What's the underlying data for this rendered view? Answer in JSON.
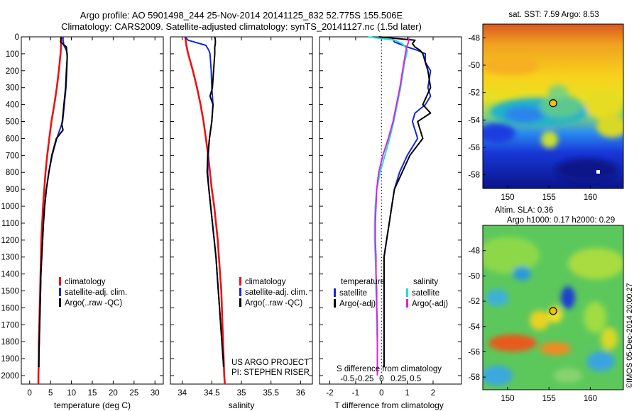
{
  "header": {
    "line1": "Argo profile: AO 5901498_244 25-Nov-2014 20141125_832 52.775S 155.506E",
    "line2": "Climatology: CARS2009. Satellite-adjusted climatology: synTS_20141127.nc (1.5d later)"
  },
  "colors": {
    "climatology": "#ee1111",
    "satellite": "#1428d8",
    "argo": "#000000",
    "salinity_satellite": "#22dddd",
    "salinity_argo": "#dd22dd"
  },
  "depth_ticks": [
    "0",
    "100",
    "200",
    "300",
    "400",
    "500",
    "600",
    "700",
    "800",
    "900",
    "1000",
    "1100",
    "1200",
    "1300",
    "1400",
    "1500",
    "1600",
    "1700",
    "1800",
    "1900",
    "2000"
  ],
  "chart_data": [
    {
      "type": "line",
      "xlabel": "temperature (deg C)",
      "ylabel": "",
      "xlim": [
        -2,
        32
      ],
      "ylim": [
        2050,
        0
      ],
      "xticks": [
        "0",
        "5",
        "10",
        "15",
        "20",
        "25",
        "30"
      ],
      "legend": {
        "position": "lower-middle",
        "entries": [
          "climatology",
          "satellite-adj. clim.",
          "Argo(..raw -QC)"
        ]
      },
      "series": [
        {
          "name": "climatology",
          "color": "#ee1111",
          "depth": [
            0,
            50,
            100,
            200,
            300,
            400,
            500,
            600,
            700,
            800,
            900,
            1000,
            1100,
            1200,
            1300,
            1400,
            1500,
            1600,
            1700,
            1800,
            1900,
            2000,
            2050
          ],
          "values": [
            7.6,
            7.5,
            7.4,
            7.0,
            6.5,
            5.9,
            5.2,
            4.7,
            4.2,
            3.8,
            3.5,
            3.2,
            3.0,
            2.8,
            2.7,
            2.6,
            2.5,
            2.4,
            2.3,
            2.2,
            2.2,
            2.1,
            2.1
          ]
        },
        {
          "name": "satellite-adj. clim.",
          "color": "#1428d8",
          "depth": [
            0,
            20,
            50,
            80,
            100,
            200,
            300,
            400,
            500,
            600,
            700,
            800,
            900,
            1000,
            1100,
            1200,
            1300,
            1400,
            1500,
            1600,
            1700,
            1800,
            1900,
            1950
          ],
          "values": [
            8.0,
            8.0,
            8.2,
            8.8,
            9.0,
            8.9,
            8.7,
            8.3,
            7.9,
            6.5,
            5.4,
            4.6,
            4.0,
            3.6,
            3.3,
            3.1,
            2.9,
            2.7,
            2.6,
            2.5,
            2.4,
            2.3,
            2.2,
            2.2
          ]
        },
        {
          "name": "Argo(..raw -QC)",
          "color": "#000000",
          "depth": [
            0,
            30,
            60,
            90,
            120,
            200,
            300,
            400,
            480,
            520,
            550,
            600,
            700,
            800,
            900,
            1000,
            1100,
            1200,
            1300,
            1400,
            1500,
            1600,
            1700,
            1800,
            1900,
            1950
          ],
          "values": [
            7.5,
            7.4,
            8.8,
            8.9,
            9.0,
            8.8,
            8.6,
            8.2,
            7.9,
            7.7,
            8.0,
            6.4,
            5.3,
            4.6,
            4.0,
            3.6,
            3.3,
            3.1,
            2.9,
            2.7,
            2.6,
            2.5,
            2.4,
            2.3,
            2.2,
            2.2
          ]
        }
      ]
    },
    {
      "type": "line",
      "xlabel": "salinity",
      "ylabel": "",
      "xlim": [
        33.8,
        36.2
      ],
      "ylim": [
        2050,
        0
      ],
      "xticks": [
        "34",
        "34.5",
        "35",
        "35.5",
        "36"
      ],
      "legend": {
        "position": "lower-middle",
        "entries": [
          "climatology",
          "satellite-adj. clim.",
          "Argo(..raw -QC)"
        ]
      },
      "annotation": [
        "US ARGO PROJECT",
        "PI: STEPHEN RISER"
      ],
      "series": [
        {
          "name": "climatology",
          "color": "#ee1111",
          "depth": [
            0,
            50,
            100,
            200,
            300,
            400,
            500,
            600,
            700,
            800,
            900,
            1000,
            1100,
            1200,
            1300,
            1400,
            1500,
            1600,
            1700,
            1800,
            1900,
            2000,
            2050
          ],
          "values": [
            34.05,
            34.07,
            34.1,
            34.18,
            34.25,
            34.31,
            34.36,
            34.4,
            34.44,
            34.47,
            34.5,
            34.54,
            34.57,
            34.6,
            34.62,
            34.64,
            34.66,
            34.67,
            34.68,
            34.69,
            34.7,
            34.71,
            34.72
          ]
        },
        {
          "name": "satellite-adj. clim.",
          "color": "#1428d8",
          "depth": [
            0,
            20,
            50,
            80,
            100,
            200,
            300,
            400,
            500,
            600,
            700,
            800,
            900,
            1000,
            1100,
            1200,
            1300,
            1400,
            1500,
            1600,
            1700,
            1800,
            1900,
            1950
          ],
          "values": [
            34.05,
            34.1,
            34.4,
            34.45,
            34.47,
            34.49,
            34.5,
            34.52,
            34.5,
            34.46,
            34.44,
            34.43,
            34.45,
            34.48,
            34.51,
            34.54,
            34.57,
            34.59,
            34.61,
            34.63,
            34.65,
            34.67,
            34.69,
            34.7
          ]
        },
        {
          "name": "Argo(..raw -QC)",
          "color": "#000000",
          "depth": [
            0,
            20,
            40,
            60,
            100,
            200,
            300,
            350,
            400,
            500,
            600,
            700,
            800,
            900,
            1000,
            1100,
            1200,
            1300,
            1400,
            1500,
            1600,
            1700,
            1800,
            1900,
            1950
          ],
          "values": [
            34.55,
            34.56,
            34.56,
            34.55,
            34.55,
            34.53,
            34.51,
            34.47,
            34.52,
            34.5,
            34.46,
            34.43,
            34.42,
            34.45,
            34.48,
            34.51,
            34.54,
            34.57,
            34.59,
            34.61,
            34.63,
            34.65,
            34.67,
            34.69,
            34.7
          ]
        }
      ]
    },
    {
      "type": "line",
      "xlabel": "T difference from climatology",
      "ylabel": "",
      "xlim": [
        -2.4,
        3.1
      ],
      "ylim": [
        2050,
        0
      ],
      "xticks": [
        "-2",
        "-1",
        "0",
        "1",
        "2"
      ],
      "secondary_axis": {
        "label": "S difference from climatology",
        "ticks": [
          "-0.5",
          "-0.25",
          "0",
          "0.25",
          "0.5"
        ]
      },
      "legend": {
        "position": "lower-middle",
        "groups": [
          {
            "title": "temperature",
            "entries": [
              "satellite",
              "Argo(-adj)"
            ]
          },
          {
            "title": "salinity",
            "entries": [
              "satellite",
              "Argo(-adj)"
            ]
          }
        ]
      },
      "series": [
        {
          "name": "temperature satellite",
          "color": "#1428d8",
          "depth": [
            0,
            30,
            60,
            80,
            100,
            150,
            200,
            300,
            350,
            400,
            450,
            500,
            600,
            700,
            800,
            900,
            1000,
            1100,
            1200,
            1300,
            1400,
            1500,
            1600,
            1700,
            1800,
            1900,
            1950
          ],
          "values": [
            0.4,
            0.5,
            1.0,
            1.4,
            1.7,
            1.7,
            1.9,
            1.8,
            1.9,
            1.7,
            1.3,
            1.2,
            1.4,
            1.0,
            0.7,
            0.5,
            0.4,
            0.3,
            0.2,
            0.1,
            0.1,
            0.1,
            0.1,
            0.1,
            0.1,
            0.1,
            0.1
          ]
        },
        {
          "name": "temperature Argo(-adj)",
          "color": "#000000",
          "depth": [
            0,
            20,
            40,
            60,
            80,
            100,
            150,
            200,
            300,
            400,
            450,
            500,
            600,
            700,
            800,
            900,
            1000,
            1100,
            1200,
            1300,
            1400,
            1500,
            1600,
            1700,
            1800,
            1900,
            1950
          ],
          "values": [
            -0.1,
            1.3,
            1.2,
            1.3,
            1.5,
            1.6,
            1.7,
            1.8,
            1.9,
            1.6,
            1.9,
            1.4,
            1.6,
            1.1,
            0.8,
            0.5,
            0.4,
            0.3,
            0.2,
            0.1,
            0.1,
            0.1,
            0.1,
            0.1,
            0.1,
            0.1,
            0.1
          ]
        },
        {
          "name": "salinity satellite",
          "color": "#22dddd",
          "depth": [
            0,
            20,
            40,
            60,
            80,
            100,
            150,
            200,
            300,
            400,
            500,
            600,
            700,
            800,
            900,
            1000,
            1100,
            1200,
            1300,
            1400,
            1500,
            1600,
            1700,
            1800,
            1900,
            2000
          ],
          "values": [
            -0.2,
            0.2,
            0.3,
            0.35,
            0.38,
            0.37,
            0.34,
            0.32,
            0.28,
            0.23,
            0.18,
            0.12,
            0.05,
            -0.02,
            -0.07,
            -0.09,
            -0.1,
            -0.1,
            -0.09,
            -0.08,
            -0.08,
            -0.07,
            -0.07,
            -0.06,
            -0.06,
            -0.06
          ]
        },
        {
          "name": "salinity Argo(-adj)",
          "color": "#dd22dd",
          "depth": [
            0,
            20,
            40,
            60,
            100,
            150,
            200,
            300,
            400,
            500,
            600,
            700,
            800,
            900,
            1000,
            1100,
            1200,
            1300,
            1400,
            1500,
            1600,
            1700,
            1800,
            1900,
            2000
          ],
          "values": [
            0.4,
            0.4,
            0.39,
            0.37,
            0.35,
            0.33,
            0.31,
            0.27,
            0.22,
            0.17,
            0.1,
            0.02,
            -0.04,
            -0.07,
            -0.08,
            -0.09,
            -0.09,
            -0.08,
            -0.08,
            -0.07,
            -0.07,
            -0.06,
            -0.06,
            -0.06,
            -0.06
          ]
        }
      ]
    },
    {
      "type": "heatmap",
      "title": "sat. SST: 7.59 Argo: 8.53",
      "xlim": [
        147,
        164
      ],
      "ylim": [
        -59,
        -47
      ],
      "xticks": [
        "150",
        "155",
        "160"
      ],
      "yticks": [
        "-48",
        "-50",
        "-52",
        "-54",
        "-56",
        "-58"
      ],
      "marker": {
        "lon": 155.506,
        "lat": -52.775
      }
    },
    {
      "type": "heatmap",
      "title": "Altim. SLA: 0.36",
      "subtitle": "Argo h1000: 0.17 h2000: 0.29",
      "xlim": [
        147,
        164
      ],
      "ylim": [
        -59,
        -46
      ],
      "xticks": [
        "150",
        "155",
        "160"
      ],
      "yticks": [
        "-48",
        "-50",
        "-52",
        "-54",
        "-56",
        "-58"
      ],
      "marker": {
        "lon": 155.506,
        "lat": -52.775
      },
      "side_note": "©IMOS 05-Dec-2014 20:00:27"
    }
  ]
}
